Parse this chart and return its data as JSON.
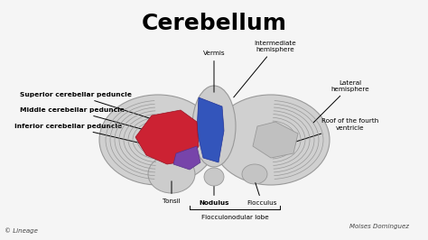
{
  "title": "Cerebellum",
  "title_fontsize": 18,
  "title_fontweight": "bold",
  "bg_color": "#f5f5f5",
  "cerebellum_color": "#d2d2d2",
  "folia_color": "#aaaaaa",
  "red_region_color": "#cc2233",
  "blue_region_color": "#3355bb",
  "purple_region_color": "#7744aa",
  "lineage_text": "© Lineage",
  "author_text": "Moises Dominguez",
  "label_fontsize": 5.2,
  "label_bold_fontsize": 5.4
}
